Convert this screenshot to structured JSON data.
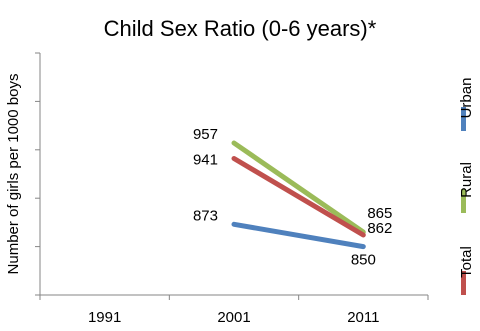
{
  "chart_data": {
    "type": "line",
    "title": "Child Sex Ratio (0-6 years)*",
    "xlabel": "",
    "ylabel": "Number of girls per 1000 boys",
    "categories": [
      "1991",
      "2001",
      "2011"
    ],
    "ylim": [
      800,
      1050
    ],
    "grid": false,
    "legend_position": "right",
    "series": [
      {
        "name": "Urban",
        "color": "#4f81bd",
        "values": [
          null,
          873,
          850
        ],
        "labels": [
          "",
          "873",
          "850"
        ]
      },
      {
        "name": "Rural",
        "color": "#9bbb59",
        "values": [
          null,
          957,
          865
        ],
        "labels": [
          "",
          "957",
          "865"
        ]
      },
      {
        "name": "Total",
        "color": "#c0504d",
        "values": [
          null,
          941,
          862
        ],
        "labels": [
          "",
          "941",
          "862"
        ]
      }
    ]
  }
}
